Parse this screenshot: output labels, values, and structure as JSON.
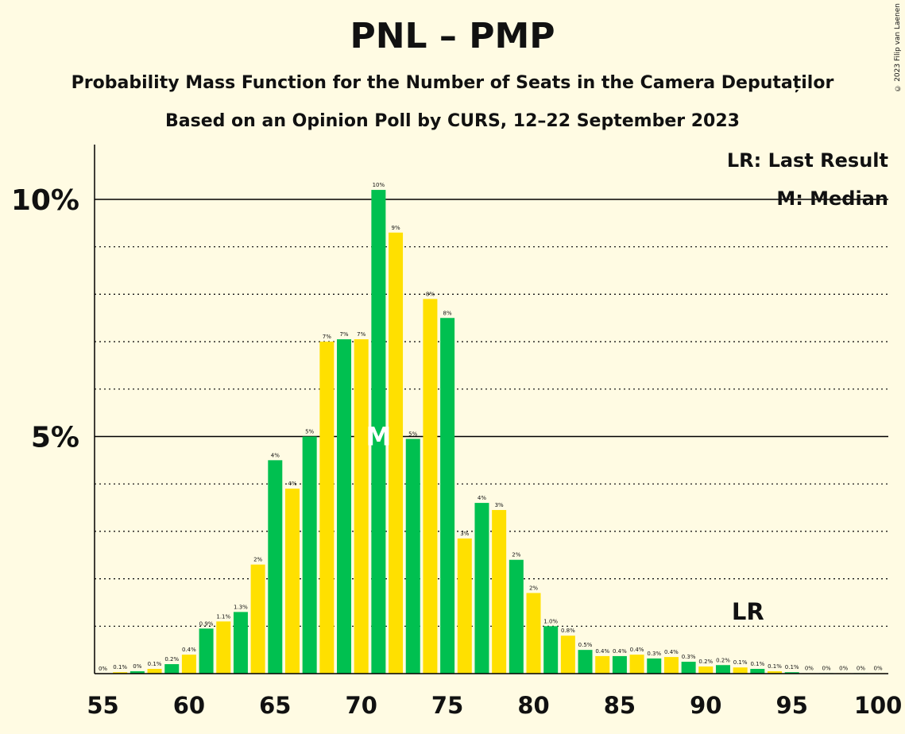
{
  "title": "PNL – PMP",
  "subtitle1": "Probability Mass Function for the Number of Seats in the Camera Deputaților",
  "subtitle2": "Based on an Opinion Poll by CURS, 12–22 September 2023",
  "copyright": "© 2023 Filip van Laenen",
  "legend": {
    "lr": "LR: Last Result",
    "median": "M: Median"
  },
  "markers": {
    "median_label": "M",
    "median_seat": 71,
    "lr_label": "LR",
    "lr_seat": 93
  },
  "colors": {
    "green": "#00C050",
    "yellow": "#FFE000",
    "background": "#FFFBE3"
  },
  "chart_data": {
    "type": "bar",
    "x": [
      56,
      57,
      58,
      59,
      60,
      61,
      62,
      63,
      64,
      65,
      66,
      67,
      68,
      69,
      70,
      71,
      72,
      73,
      74,
      75,
      76,
      77,
      78,
      79,
      80,
      81,
      82,
      83,
      84,
      85,
      86,
      87,
      88,
      89,
      90,
      91,
      92,
      93,
      94,
      95,
      96,
      97,
      98,
      99,
      100
    ],
    "values": [
      0.03,
      0.05,
      0.1,
      0.2,
      0.4,
      0.95,
      1.1,
      1.3,
      2.3,
      4.5,
      3.9,
      5.0,
      7.0,
      7.05,
      7.05,
      10.2,
      9.3,
      4.95,
      7.9,
      7.5,
      2.85,
      3.6,
      3.45,
      2.4,
      1.7,
      1.0,
      0.8,
      0.5,
      0.37,
      0.37,
      0.4,
      0.32,
      0.35,
      0.25,
      0.15,
      0.18,
      0.13,
      0.1,
      0.05,
      0.03,
      0.01,
      0.01,
      0.01,
      0.01,
      0.01
    ],
    "labels": [
      "0%",
      "0.1%",
      "0%",
      "0.1%",
      "0.2%",
      "0.4%",
      "0.9%",
      "1.1%",
      "1.3%",
      "2%",
      "4%",
      "4%",
      "5%",
      "7%",
      "7%",
      "7%",
      "10%",
      "9%",
      "5%",
      "8%",
      "8%",
      "3%",
      "4%",
      "3%",
      "2%",
      "2%",
      "1.0%",
      "0.8%",
      "0.5%",
      "0.4%",
      "0.4%",
      "0.4%",
      "0.3%",
      "0.4%",
      "0.3%",
      "0.2%",
      "0.2%",
      "0.1%",
      "0.1%",
      "0.1%",
      "0.1%",
      "0%",
      "0%",
      "0%",
      "0%",
      "0%"
    ],
    "label_seats": [
      55,
      56,
      57,
      58,
      59,
      60,
      61,
      62,
      63,
      64,
      65,
      66,
      67,
      68,
      69,
      70,
      71,
      72,
      73,
      74,
      75,
      76,
      77,
      78,
      79,
      80,
      81,
      82,
      83,
      84,
      85,
      86,
      87,
      88,
      89,
      90,
      91,
      92,
      93,
      94,
      95,
      96,
      97,
      98,
      99,
      100
    ],
    "x_ticks": [
      "55",
      "60",
      "65",
      "70",
      "75",
      "80",
      "85",
      "90",
      "95",
      "100"
    ],
    "x_tick_values": [
      55,
      60,
      65,
      70,
      75,
      80,
      85,
      90,
      95,
      100
    ],
    "y_ticks": [
      "5%",
      "10%"
    ],
    "y_tick_values": [
      5,
      10
    ],
    "xlim": [
      55,
      100
    ],
    "ylim": [
      0,
      11.2
    ],
    "grid": "dotted every 1%, solid at 5% and 10%"
  }
}
